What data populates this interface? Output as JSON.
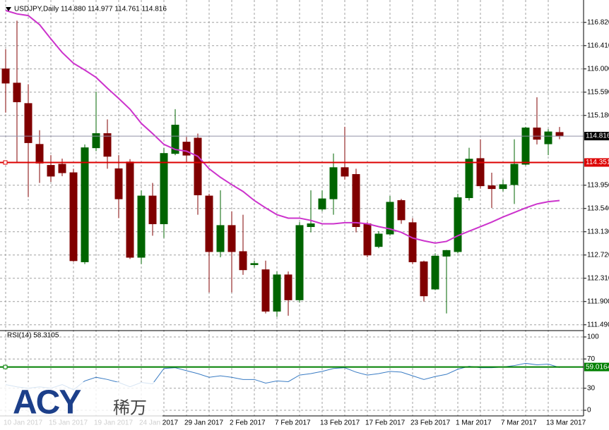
{
  "chart_data": {
    "type": "candlestick",
    "title": "USDJPY,Daily 114.880 114.977 114.761 114.816",
    "categories": [
      "10 Jan 2017",
      null,
      null,
      null,
      "15 Jan 2017",
      null,
      null,
      null,
      "19 Jan 2017",
      null,
      null,
      null,
      "24 Jan 2017",
      null,
      null,
      null,
      "29 Jan 2017",
      null,
      null,
      null,
      "2 Feb 2017",
      null,
      null,
      null,
      "7 Feb 2017",
      null,
      null,
      null,
      "13 Feb 2017",
      null,
      null,
      null,
      "17 Feb 2017",
      null,
      null,
      null,
      "23 Feb 2017",
      null,
      null,
      null,
      "1 Mar 2017",
      null,
      null,
      null,
      "7 Mar 2017",
      null,
      null,
      null,
      "13 Mar 2017",
      null
    ],
    "open": [
      116.0,
      115.75,
      115.39,
      114.67,
      114.3,
      114.32,
      114.17,
      112.6,
      114.61,
      114.86,
      114.24,
      114.36,
      112.68,
      113.76,
      113.27,
      114.51,
      114.71,
      114.78,
      113.76,
      112.78,
      113.24,
      112.78,
      112.55,
      112.46,
      111.73,
      112.37,
      111.93,
      113.22,
      113.53,
      113.71,
      114.26,
      114.14,
      113.27,
      112.87,
      113.09,
      113.68,
      113.29,
      112.6,
      112.12,
      112.7,
      112.78,
      113.73,
      114.42,
      113.94,
      113.89,
      113.96,
      114.32,
      114.96,
      114.68,
      114.88
    ],
    "high": [
      116.35,
      116.85,
      115.73,
      114.92,
      114.48,
      114.42,
      114.24,
      114.67,
      115.6,
      115.11,
      114.48,
      114.41,
      113.86,
      113.99,
      114.61,
      115.29,
      114.8,
      114.86,
      113.8,
      113.86,
      113.49,
      113.43,
      112.62,
      112.62,
      112.43,
      112.43,
      113.3,
      113.86,
      113.86,
      114.51,
      114.98,
      114.24,
      113.3,
      113.14,
      113.76,
      113.71,
      113.37,
      112.62,
      112.75,
      112.81,
      113.8,
      114.61,
      114.76,
      114.17,
      114.05,
      114.76,
      114.98,
      115.5,
      114.94,
      114.977
    ],
    "low": [
      115.23,
      114.36,
      113.74,
      113.99,
      114.01,
      114.11,
      112.6,
      112.56,
      114.55,
      114.24,
      113.37,
      112.65,
      112.56,
      113.06,
      113.02,
      114.48,
      114.34,
      113.43,
      112.06,
      112.68,
      112.06,
      112.37,
      112.5,
      111.69,
      111.63,
      111.65,
      111.88,
      113.12,
      113.49,
      113.43,
      114.05,
      113.12,
      112.68,
      112.84,
      113.06,
      113.27,
      112.56,
      111.9,
      112.1,
      111.69,
      112.75,
      113.68,
      113.89,
      113.55,
      113.84,
      113.62,
      114.3,
      114.67,
      114.48,
      114.761
    ],
    "close": [
      115.75,
      115.42,
      114.7,
      114.34,
      114.11,
      114.17,
      112.62,
      114.61,
      114.86,
      114.46,
      113.71,
      112.68,
      113.76,
      113.27,
      114.51,
      115.01,
      114.48,
      113.78,
      112.78,
      113.24,
      112.78,
      112.46,
      112.57,
      111.73,
      112.37,
      111.93,
      113.24,
      113.27,
      113.71,
      114.26,
      114.11,
      113.22,
      112.72,
      113.09,
      113.65,
      113.34,
      112.6,
      112.0,
      112.7,
      112.8,
      113.73,
      114.41,
      113.94,
      113.89,
      113.96,
      114.32,
      114.96,
      114.76,
      114.89,
      114.816
    ],
    "up_color": "#006400",
    "down_color": "#800000",
    "ma": {
      "color": "#cc33cc",
      "values": [
        117.03,
        116.97,
        116.94,
        116.78,
        116.53,
        116.29,
        116.1,
        115.98,
        115.85,
        115.66,
        115.48,
        115.29,
        115.04,
        114.86,
        114.67,
        114.58,
        114.55,
        114.46,
        114.24,
        114.09,
        113.96,
        113.84,
        113.68,
        113.55,
        113.43,
        113.37,
        113.37,
        113.33,
        113.27,
        113.27,
        113.29,
        113.29,
        113.27,
        113.22,
        113.18,
        113.12,
        113.02,
        112.97,
        112.93,
        112.96,
        113.06,
        113.14,
        113.22,
        113.3,
        113.39,
        113.47,
        113.55,
        113.62,
        113.66,
        113.68
      ]
    },
    "ylim": [
      111.4,
      117.19
    ],
    "yticks": [
      {
        "value": 116.82,
        "label": "116.820"
      },
      {
        "value": 116.41,
        "label": "116.410"
      },
      {
        "value": 116.0,
        "label": "116.000"
      },
      {
        "value": 115.59,
        "label": "115.590"
      },
      {
        "value": 115.18,
        "label": "115.180"
      },
      {
        "value": 113.95,
        "label": "113.950"
      },
      {
        "value": 113.54,
        "label": "113.540"
      },
      {
        "value": 113.13,
        "label": "113.130"
      },
      {
        "value": 112.72,
        "label": "112.720"
      },
      {
        "value": 112.31,
        "label": "112.310"
      },
      {
        "value": 111.9,
        "label": "111.900"
      },
      {
        "value": 111.49,
        "label": "111.490"
      }
    ],
    "grid": true,
    "current_price": 114.816,
    "level_line": {
      "value": 114.351,
      "color": "#dd0000"
    },
    "rsi": {
      "label": "RSI(14) 58.3105",
      "color": "#3a7cc4",
      "values": [
        35,
        32,
        30,
        32,
        30,
        35,
        28,
        40,
        45,
        42,
        38,
        32,
        38,
        36,
        57,
        58,
        54,
        50,
        45,
        47,
        45,
        42,
        42,
        37,
        40,
        39,
        48,
        50,
        53,
        57,
        58,
        52,
        48,
        50,
        53,
        52,
        47,
        42,
        46,
        49,
        56,
        60,
        58,
        58,
        59,
        61,
        64,
        62,
        63,
        58.3105
      ],
      "ylim": [
        -7.7,
        107.7
      ],
      "yticks": [
        100,
        70,
        30,
        0
      ],
      "level": 59.0164,
      "level_color": "#008000"
    },
    "watermark": {
      "brand": "ACY",
      "name": "稀万"
    }
  }
}
